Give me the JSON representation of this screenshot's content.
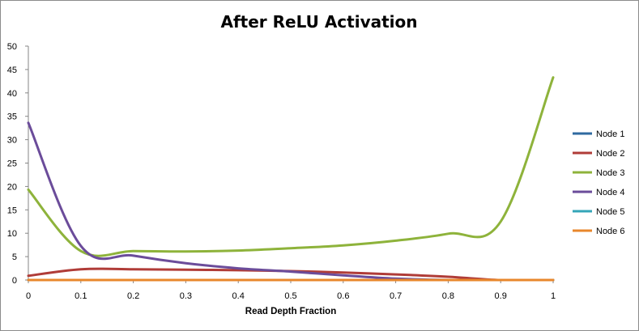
{
  "chart_data": {
    "type": "line",
    "title": "After ReLU Activation",
    "xlabel": "Read Depth Fraction",
    "ylabel": "",
    "xlim": [
      0,
      1
    ],
    "ylim": [
      0,
      50
    ],
    "x_ticks": [
      0,
      0.1,
      0.2,
      0.3,
      0.4,
      0.5,
      0.6,
      0.7,
      0.8,
      0.9,
      1
    ],
    "y_ticks": [
      0,
      5,
      10,
      15,
      20,
      25,
      30,
      35,
      40,
      45,
      50
    ],
    "grid": false,
    "legend_position": "right",
    "x": [
      0,
      0.1,
      0.2,
      0.3,
      0.4,
      0.5,
      0.6,
      0.7,
      0.8,
      0.9,
      1
    ],
    "series": [
      {
        "name": "Node 1",
        "color": "#2f6aa0",
        "values": [
          0,
          0,
          0,
          0,
          0,
          0,
          0,
          0,
          0,
          0,
          0
        ]
      },
      {
        "name": "Node 2",
        "color": "#b03c38",
        "values": [
          0.9,
          2.3,
          2.3,
          2.2,
          2.1,
          1.9,
          1.6,
          1.2,
          0.7,
          0,
          0
        ]
      },
      {
        "name": "Node 3",
        "color": "#8eb33b",
        "values": [
          19.3,
          6.2,
          6.2,
          6.1,
          6.3,
          6.8,
          7.4,
          8.4,
          9.9,
          12.5,
          43.3
        ]
      },
      {
        "name": "Node 4",
        "color": "#6b4c9a",
        "values": [
          33.6,
          7.3,
          5.2,
          3.6,
          2.5,
          1.8,
          1.0,
          0.3,
          0,
          0,
          0
        ]
      },
      {
        "name": "Node 5",
        "color": "#34a6b8",
        "values": [
          0,
          0,
          0,
          0,
          0,
          0,
          0,
          0,
          0,
          0,
          0
        ]
      },
      {
        "name": "Node 6",
        "color": "#e8872c",
        "values": [
          0,
          0,
          0,
          0,
          0,
          0,
          0,
          0,
          0,
          0,
          0
        ]
      }
    ]
  }
}
